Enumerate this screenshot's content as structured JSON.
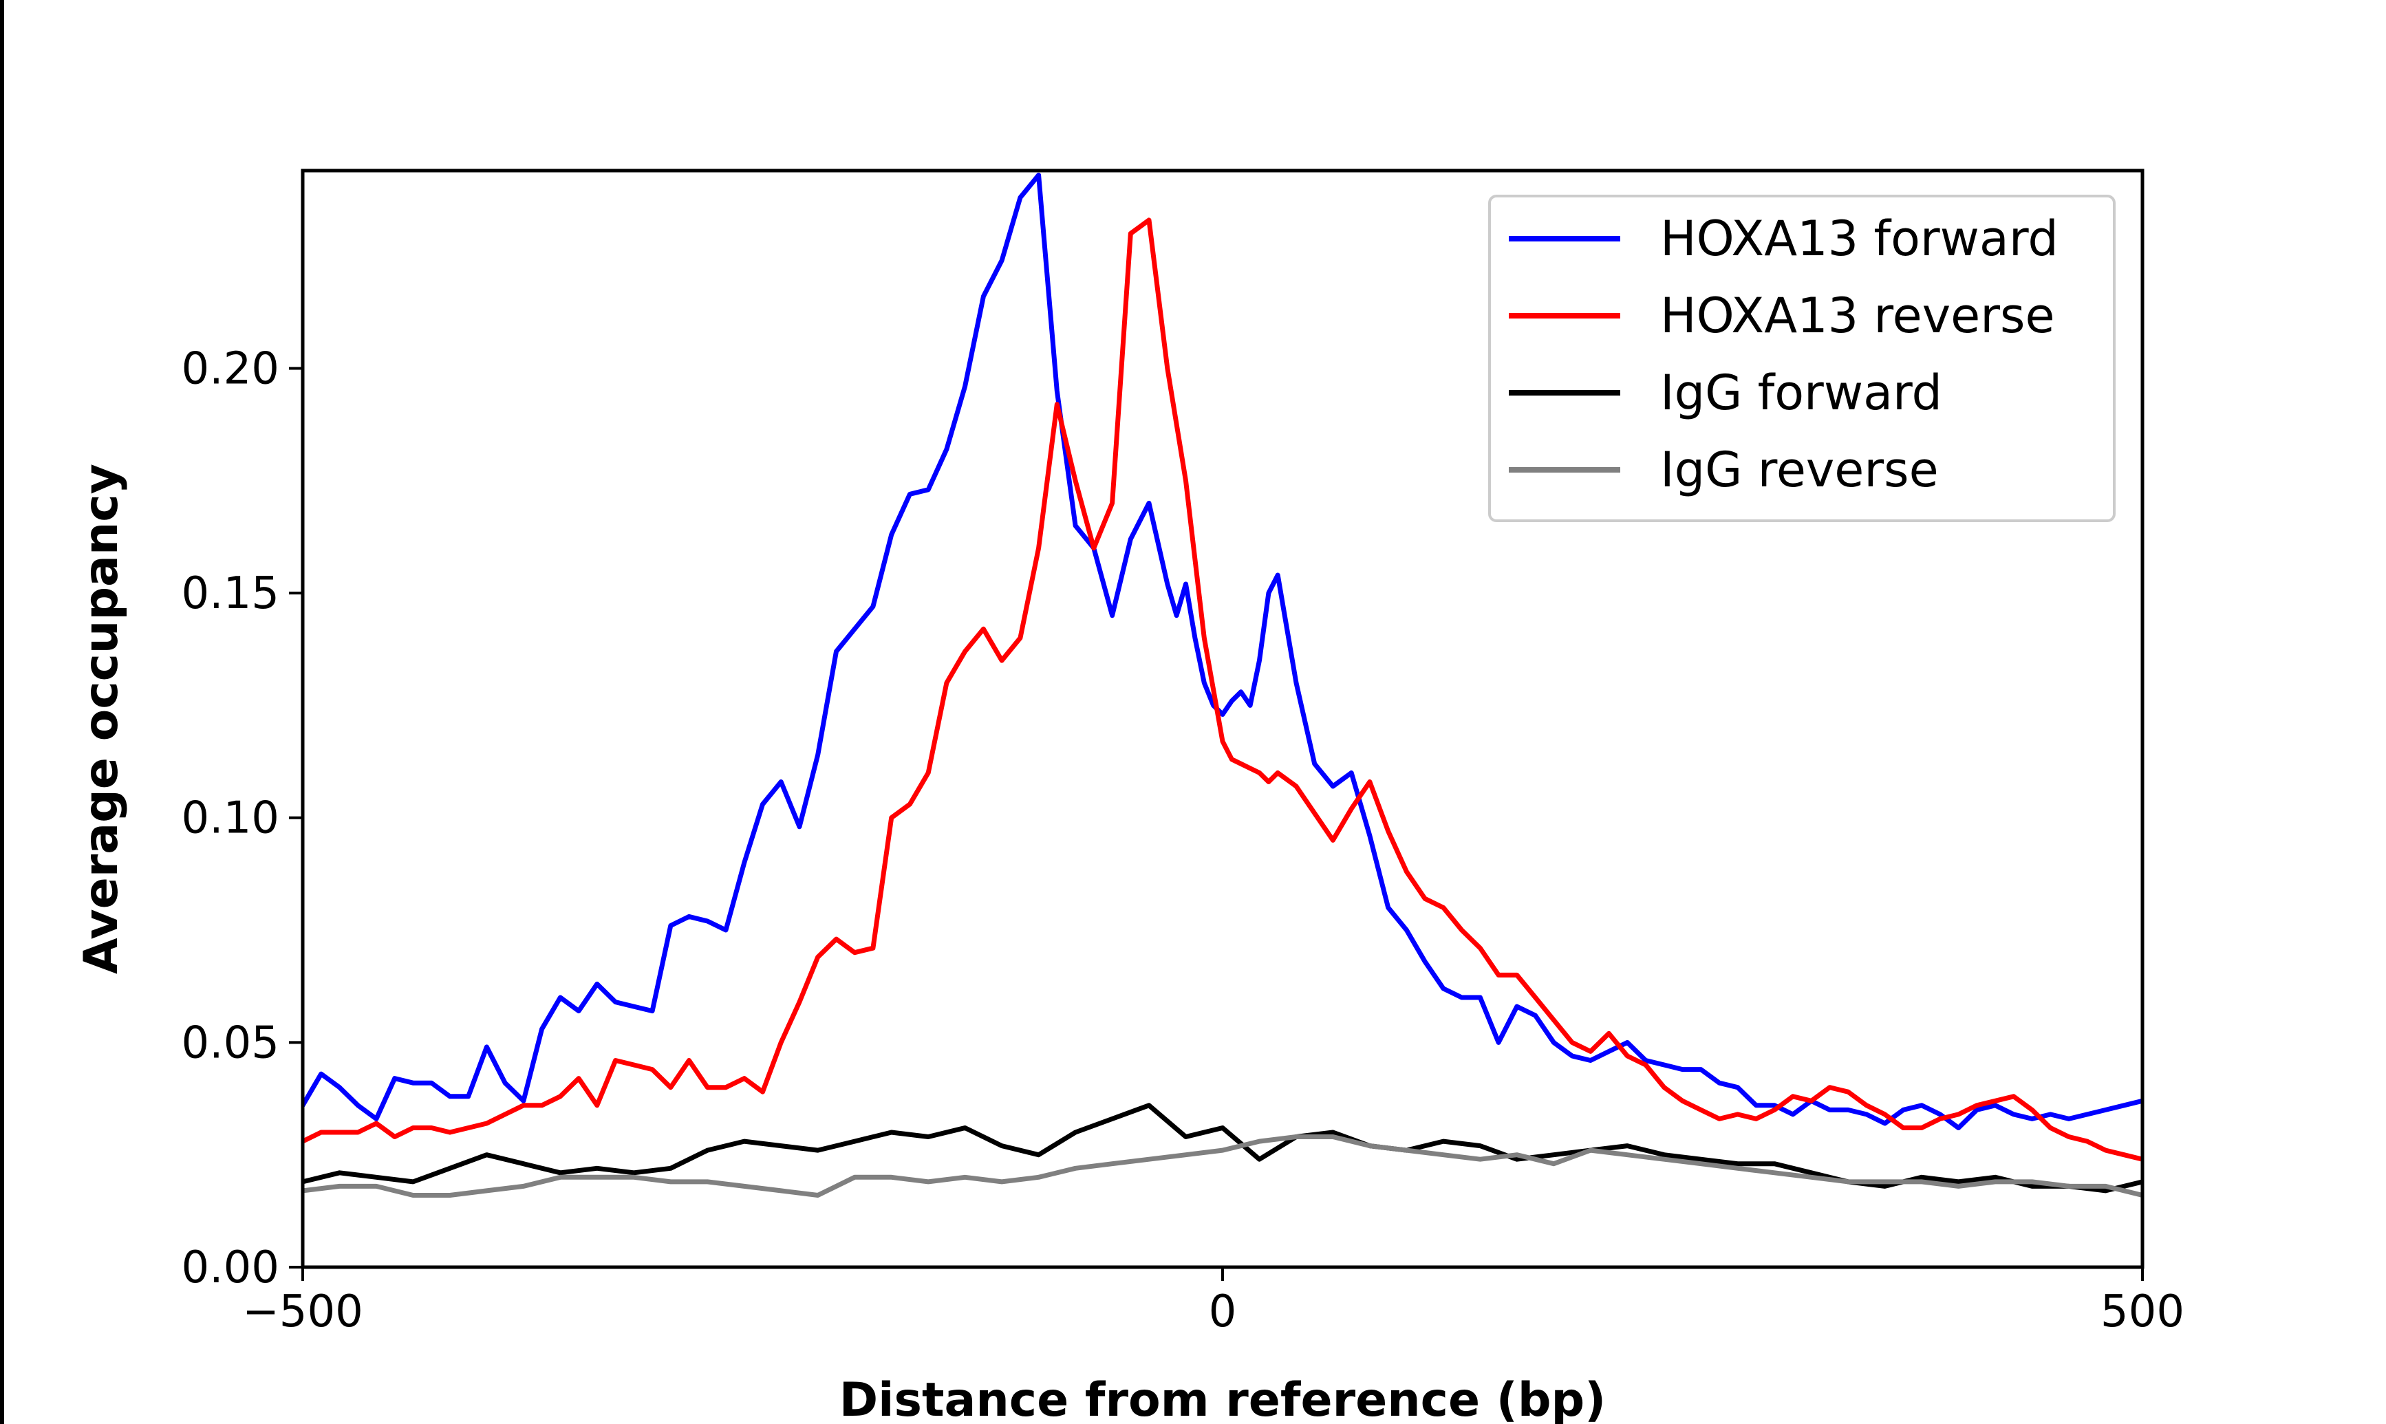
{
  "chart_data": {
    "type": "line",
    "title": "",
    "xlabel": "Distance from reference (bp)",
    "ylabel": "Average occupancy",
    "xlim": [
      -500,
      500
    ],
    "ylim": [
      0,
      0.244
    ],
    "xticks": [
      -500,
      0,
      500
    ],
    "xtick_labels": [
      "−500",
      "0",
      "500"
    ],
    "yticks": [
      0,
      0.05,
      0.1,
      0.15,
      0.2
    ],
    "ytick_labels": [
      "0.00",
      "0.05",
      "0.10",
      "0.15",
      "0.20"
    ],
    "grid": false,
    "legend_position": "top-right",
    "series": [
      {
        "name": "HOXA13 forward",
        "color": "#0000ff",
        "x": [
          -500,
          -490,
          -480,
          -470,
          -460,
          -450,
          -440,
          -430,
          -420,
          -410,
          -400,
          -390,
          -380,
          -370,
          -360,
          -350,
          -340,
          -330,
          -320,
          -310,
          -300,
          -290,
          -280,
          -270,
          -260,
          -250,
          -240,
          -230,
          -220,
          -210,
          -200,
          -190,
          -180,
          -170,
          -160,
          -150,
          -140,
          -130,
          -120,
          -110,
          -100,
          -90,
          -80,
          -70,
          -60,
          -50,
          -40,
          -30,
          -25,
          -20,
          -15,
          -10,
          -5,
          0,
          5,
          10,
          15,
          20,
          25,
          30,
          40,
          50,
          60,
          70,
          80,
          90,
          100,
          110,
          120,
          130,
          140,
          150,
          160,
          170,
          180,
          190,
          200,
          210,
          220,
          230,
          240,
          250,
          260,
          270,
          280,
          290,
          300,
          310,
          320,
          330,
          340,
          350,
          360,
          370,
          380,
          390,
          400,
          410,
          420,
          430,
          440,
          450,
          460,
          470,
          480,
          490,
          500
        ],
        "y": [
          0.036,
          0.043,
          0.04,
          0.036,
          0.033,
          0.042,
          0.041,
          0.041,
          0.038,
          0.038,
          0.049,
          0.041,
          0.037,
          0.053,
          0.06,
          0.057,
          0.063,
          0.059,
          0.058,
          0.057,
          0.076,
          0.078,
          0.077,
          0.075,
          0.09,
          0.103,
          0.108,
          0.098,
          0.114,
          0.137,
          0.142,
          0.147,
          0.163,
          0.172,
          0.173,
          0.182,
          0.196,
          0.216,
          0.224,
          0.238,
          0.243,
          0.195,
          0.165,
          0.16,
          0.145,
          0.162,
          0.17,
          0.152,
          0.145,
          0.152,
          0.14,
          0.13,
          0.125,
          0.123,
          0.126,
          0.128,
          0.125,
          0.135,
          0.15,
          0.154,
          0.13,
          0.112,
          0.107,
          0.11,
          0.096,
          0.08,
          0.075,
          0.068,
          0.062,
          0.06,
          0.06,
          0.05,
          0.058,
          0.056,
          0.05,
          0.047,
          0.046,
          0.048,
          0.05,
          0.046,
          0.045,
          0.044,
          0.044,
          0.041,
          0.04,
          0.036,
          0.036,
          0.034,
          0.037,
          0.035,
          0.035,
          0.034,
          0.032,
          0.035,
          0.036,
          0.034,
          0.031,
          0.035,
          0.036,
          0.034,
          0.033,
          0.034,
          0.033,
          0.034,
          0.035,
          0.036,
          0.037
        ]
      },
      {
        "name": "HOXA13 reverse",
        "color": "#ff0000",
        "x": [
          -500,
          -490,
          -480,
          -470,
          -460,
          -450,
          -440,
          -430,
          -420,
          -410,
          -400,
          -390,
          -380,
          -370,
          -360,
          -350,
          -340,
          -330,
          -320,
          -310,
          -300,
          -290,
          -280,
          -270,
          -260,
          -250,
          -240,
          -230,
          -220,
          -210,
          -200,
          -190,
          -180,
          -170,
          -160,
          -150,
          -140,
          -130,
          -120,
          -110,
          -100,
          -90,
          -80,
          -70,
          -60,
          -50,
          -40,
          -30,
          -20,
          -10,
          0,
          5,
          10,
          15,
          20,
          25,
          30,
          40,
          50,
          60,
          70,
          80,
          90,
          100,
          110,
          120,
          130,
          140,
          150,
          160,
          170,
          180,
          190,
          200,
          210,
          220,
          230,
          240,
          250,
          260,
          270,
          280,
          290,
          300,
          310,
          320,
          330,
          340,
          350,
          360,
          370,
          380,
          390,
          400,
          410,
          420,
          430,
          440,
          450,
          460,
          470,
          480,
          490,
          500
        ],
        "y": [
          0.028,
          0.03,
          0.03,
          0.03,
          0.032,
          0.029,
          0.031,
          0.031,
          0.03,
          0.031,
          0.032,
          0.034,
          0.036,
          0.036,
          0.038,
          0.042,
          0.036,
          0.046,
          0.045,
          0.044,
          0.04,
          0.046,
          0.04,
          0.04,
          0.042,
          0.039,
          0.05,
          0.059,
          0.069,
          0.073,
          0.07,
          0.071,
          0.1,
          0.103,
          0.11,
          0.13,
          0.137,
          0.142,
          0.135,
          0.14,
          0.16,
          0.192,
          0.175,
          0.16,
          0.17,
          0.23,
          0.233,
          0.2,
          0.175,
          0.14,
          0.117,
          0.113,
          0.112,
          0.111,
          0.11,
          0.108,
          0.11,
          0.107,
          0.101,
          0.095,
          0.102,
          0.108,
          0.097,
          0.088,
          0.082,
          0.08,
          0.075,
          0.071,
          0.065,
          0.065,
          0.06,
          0.055,
          0.05,
          0.048,
          0.052,
          0.047,
          0.045,
          0.04,
          0.037,
          0.035,
          0.033,
          0.034,
          0.033,
          0.035,
          0.038,
          0.037,
          0.04,
          0.039,
          0.036,
          0.034,
          0.031,
          0.031,
          0.033,
          0.034,
          0.036,
          0.037,
          0.038,
          0.035,
          0.031,
          0.029,
          0.028,
          0.026,
          0.025,
          0.024
        ]
      },
      {
        "name": "IgG forward",
        "color": "#000000",
        "x": [
          -500,
          -480,
          -460,
          -440,
          -420,
          -400,
          -380,
          -360,
          -340,
          -320,
          -300,
          -280,
          -260,
          -240,
          -220,
          -200,
          -180,
          -160,
          -140,
          -120,
          -100,
          -80,
          -60,
          -40,
          -20,
          0,
          20,
          40,
          60,
          80,
          100,
          120,
          140,
          160,
          180,
          200,
          220,
          240,
          260,
          280,
          300,
          320,
          340,
          360,
          380,
          400,
          420,
          440,
          460,
          480,
          500
        ],
        "y": [
          0.019,
          0.021,
          0.02,
          0.019,
          0.022,
          0.025,
          0.023,
          0.021,
          0.022,
          0.021,
          0.022,
          0.026,
          0.028,
          0.027,
          0.026,
          0.028,
          0.03,
          0.029,
          0.031,
          0.027,
          0.025,
          0.03,
          0.033,
          0.036,
          0.029,
          0.031,
          0.024,
          0.029,
          0.03,
          0.027,
          0.026,
          0.028,
          0.027,
          0.024,
          0.025,
          0.026,
          0.027,
          0.025,
          0.024,
          0.023,
          0.023,
          0.021,
          0.019,
          0.018,
          0.02,
          0.019,
          0.02,
          0.018,
          0.018,
          0.017,
          0.019
        ]
      },
      {
        "name": "IgG reverse",
        "color": "#808080",
        "x": [
          -500,
          -480,
          -460,
          -440,
          -420,
          -400,
          -380,
          -360,
          -340,
          -320,
          -300,
          -280,
          -260,
          -240,
          -220,
          -200,
          -180,
          -160,
          -140,
          -120,
          -100,
          -80,
          -60,
          -40,
          -20,
          0,
          20,
          40,
          60,
          80,
          100,
          120,
          140,
          160,
          180,
          200,
          220,
          240,
          260,
          280,
          300,
          320,
          340,
          360,
          380,
          400,
          420,
          440,
          460,
          480,
          500
        ],
        "y": [
          0.017,
          0.018,
          0.018,
          0.016,
          0.016,
          0.017,
          0.018,
          0.02,
          0.02,
          0.02,
          0.019,
          0.019,
          0.018,
          0.017,
          0.016,
          0.02,
          0.02,
          0.019,
          0.02,
          0.019,
          0.02,
          0.022,
          0.023,
          0.024,
          0.025,
          0.026,
          0.028,
          0.029,
          0.029,
          0.027,
          0.026,
          0.025,
          0.024,
          0.025,
          0.023,
          0.026,
          0.025,
          0.024,
          0.023,
          0.022,
          0.021,
          0.02,
          0.019,
          0.019,
          0.019,
          0.018,
          0.019,
          0.019,
          0.018,
          0.018,
          0.016
        ]
      }
    ]
  }
}
